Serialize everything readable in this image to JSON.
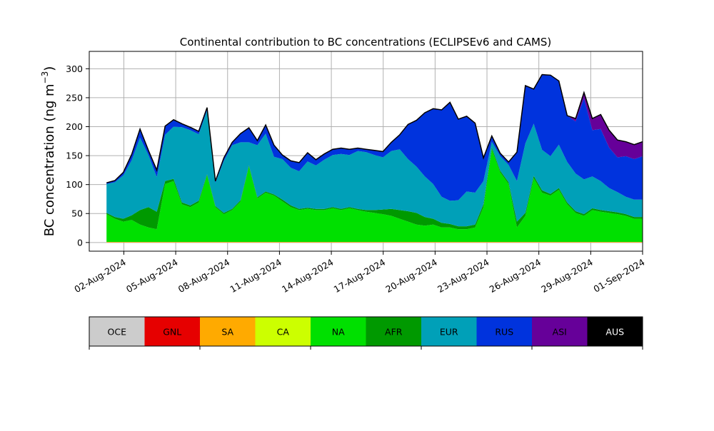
{
  "chart_data": {
    "type": "area",
    "stacked": true,
    "title": "Continental contribution to BC concentrations (ECLIPSEv6 and CAMS)",
    "ylabel": "BC concentration (ng m",
    "ylabel_exp": "−3",
    "ylabel_close": ")",
    "xlabel": "",
    "grid": true,
    "legend_placement": "bottom-colorbar",
    "x_start": "2024-08-01",
    "x_end": "2024-09-01",
    "xlim": [
      "2024-07-31",
      "2024-09-01"
    ],
    "ylim": [
      -15,
      330
    ],
    "yticks": [
      0,
      50,
      100,
      150,
      200,
      250,
      300
    ],
    "xtick_labels": [
      "02-Aug-2024",
      "05-Aug-2024",
      "08-Aug-2024",
      "11-Aug-2024",
      "14-Aug-2024",
      "17-Aug-2024",
      "20-Aug-2024",
      "23-Aug-2024",
      "26-Aug-2024",
      "29-Aug-2024",
      "01-Sep-2024"
    ],
    "series": [
      {
        "name": "OCE",
        "color": "#cccccc",
        "values": [
          0,
          0,
          0,
          0,
          0,
          0,
          0,
          0,
          0,
          0,
          0,
          0,
          0,
          0,
          0,
          0,
          0,
          0,
          0,
          0,
          0,
          0,
          0,
          0,
          0,
          0,
          0,
          0,
          0,
          0,
          0,
          0,
          0,
          0,
          0,
          0,
          0,
          0,
          0,
          0,
          0,
          0,
          0,
          0,
          0,
          0,
          0,
          0,
          0,
          0,
          0,
          0,
          0,
          0,
          0,
          0,
          0,
          0,
          0,
          0,
          0,
          0,
          0,
          0,
          0
        ]
      },
      {
        "name": "GNL",
        "color": "#e60000",
        "values": [
          0,
          0,
          0,
          0,
          0,
          0,
          0,
          0,
          0,
          0,
          0,
          0,
          0,
          0,
          0,
          0,
          0,
          0,
          0,
          0,
          0,
          0,
          0,
          0,
          0,
          0,
          0,
          0,
          0,
          0,
          0,
          0,
          0,
          0,
          0,
          0,
          0,
          0,
          0,
          0,
          0,
          0,
          0,
          0,
          0,
          0,
          0,
          0,
          0,
          0,
          0,
          0,
          0,
          0,
          0,
          0,
          0,
          0,
          0,
          0,
          0,
          0,
          0,
          0,
          0
        ]
      },
      {
        "name": "SA",
        "color": "#ffaa00",
        "values": [
          1,
          1,
          1,
          1,
          1,
          1,
          1,
          1,
          1,
          1,
          1,
          1,
          1,
          1,
          1,
          1,
          1,
          1,
          1,
          1,
          1,
          1,
          1,
          1,
          1,
          1,
          1,
          1,
          1,
          1,
          1,
          1,
          1,
          1,
          1,
          1,
          1,
          1,
          1,
          1,
          1,
          1,
          1,
          1,
          1,
          1,
          1,
          1,
          1,
          1,
          1,
          1,
          1,
          1,
          1,
          1,
          1,
          1,
          1,
          1,
          1,
          1,
          1,
          1,
          1
        ]
      },
      {
        "name": "CA",
        "color": "#ccff00",
        "values": [
          0,
          0,
          0,
          0,
          0,
          0,
          0,
          0,
          0,
          0,
          0,
          0,
          0,
          0,
          0,
          0,
          0,
          0,
          0,
          0,
          0,
          0,
          0,
          0,
          0,
          0,
          0,
          0,
          0,
          0,
          0,
          0,
          0,
          0,
          0,
          0,
          0,
          0,
          0,
          0,
          0,
          0,
          0,
          0,
          0,
          0,
          0,
          0,
          0,
          0,
          0,
          0,
          0,
          0,
          0,
          0,
          0,
          0,
          0,
          0,
          0,
          0,
          0,
          0,
          0
        ]
      },
      {
        "name": "NA",
        "color": "#00e000",
        "values": [
          48,
          40,
          35,
          38,
          30,
          25,
          22,
          100,
          105,
          65,
          60,
          68,
          115,
          60,
          48,
          55,
          70,
          130,
          75,
          85,
          80,
          70,
          60,
          55,
          57,
          55,
          55,
          58,
          55,
          58,
          55,
          52,
          50,
          48,
          45,
          40,
          35,
          30,
          28,
          30,
          25,
          25,
          22,
          22,
          25,
          60,
          160,
          120,
          100,
          25,
          45,
          110,
          85,
          80,
          90,
          65,
          50,
          45,
          55,
          52,
          50,
          48,
          45,
          40,
          40
        ]
      },
      {
        "name": "AFR",
        "color": "#009900",
        "values": [
          2,
          3,
          5,
          8,
          25,
          35,
          30,
          5,
          4,
          3,
          3,
          3,
          2,
          2,
          2,
          2,
          2,
          2,
          2,
          2,
          2,
          3,
          3,
          2,
          2,
          2,
          2,
          2,
          2,
          2,
          2,
          3,
          5,
          8,
          12,
          15,
          18,
          20,
          15,
          10,
          8,
          6,
          5,
          5,
          5,
          5,
          3,
          3,
          3,
          10,
          5,
          4,
          4,
          3,
          3,
          3,
          3,
          3,
          3,
          3,
          3,
          3,
          3,
          3,
          3
        ]
      },
      {
        "name": "EUR",
        "color": "#00a0b8",
        "values": [
          50,
          60,
          75,
          95,
          125,
          90,
          60,
          80,
          90,
          130,
          130,
          115,
          110,
          40,
          90,
          110,
          100,
          40,
          90,
          100,
          65,
          70,
          65,
          65,
          80,
          75,
          85,
          90,
          95,
          90,
          100,
          100,
          95,
          90,
          100,
          105,
          90,
          80,
          70,
          60,
          45,
          40,
          45,
          60,
          55,
          40,
          10,
          25,
          30,
          70,
          120,
          90,
          70,
          65,
          75,
          70,
          65,
          60,
          55,
          50,
          40,
          35,
          30,
          30,
          30
        ]
      },
      {
        "name": "RUS",
        "color": "#0033dd",
        "values": [
          2,
          3,
          5,
          10,
          15,
          8,
          12,
          15,
          12,
          6,
          5,
          5,
          5,
          3,
          5,
          5,
          15,
          25,
          8,
          15,
          20,
          7,
          12,
          15,
          15,
          10,
          10,
          10,
          10,
          10,
          5,
          5,
          8,
          10,
          15,
          25,
          60,
          80,
          110,
          130,
          150,
          170,
          140,
          130,
          120,
          40,
          10,
          5,
          5,
          50,
          100,
          60,
          130,
          140,
          110,
          80,
          90,
          140,
          80,
          90,
          70,
          60,
          70,
          70,
          75
        ]
      },
      {
        "name": "ASI",
        "color": "#660099",
        "values": [
          0,
          0,
          0,
          0,
          0,
          0,
          0,
          0,
          0,
          0,
          0,
          0,
          0,
          0,
          0,
          0,
          0,
          0,
          0,
          0,
          0,
          0,
          0,
          0,
          0,
          0,
          0,
          0,
          0,
          0,
          0,
          0,
          0,
          0,
          0,
          0,
          0,
          0,
          0,
          0,
          0,
          0,
          0,
          0,
          0,
          0,
          0,
          0,
          0,
          0,
          0,
          0,
          0,
          0,
          0,
          0,
          5,
          10,
          20,
          25,
          30,
          30,
          25,
          25,
          25
        ]
      },
      {
        "name": "AUS",
        "color": "#000000",
        "values": [
          0,
          0,
          0,
          0,
          0,
          0,
          0,
          0,
          0,
          0,
          0,
          0,
          0,
          0,
          0,
          0,
          0,
          0,
          0,
          0,
          0,
          0,
          0,
          0,
          0,
          0,
          0,
          0,
          0,
          0,
          0,
          0,
          0,
          0,
          0,
          0,
          0,
          0,
          0,
          0,
          0,
          0,
          0,
          0,
          0,
          0,
          0,
          0,
          0,
          0,
          0,
          0,
          0,
          0,
          0,
          0,
          0,
          0,
          0,
          0,
          0,
          0,
          0,
          0,
          0
        ]
      }
    ]
  }
}
